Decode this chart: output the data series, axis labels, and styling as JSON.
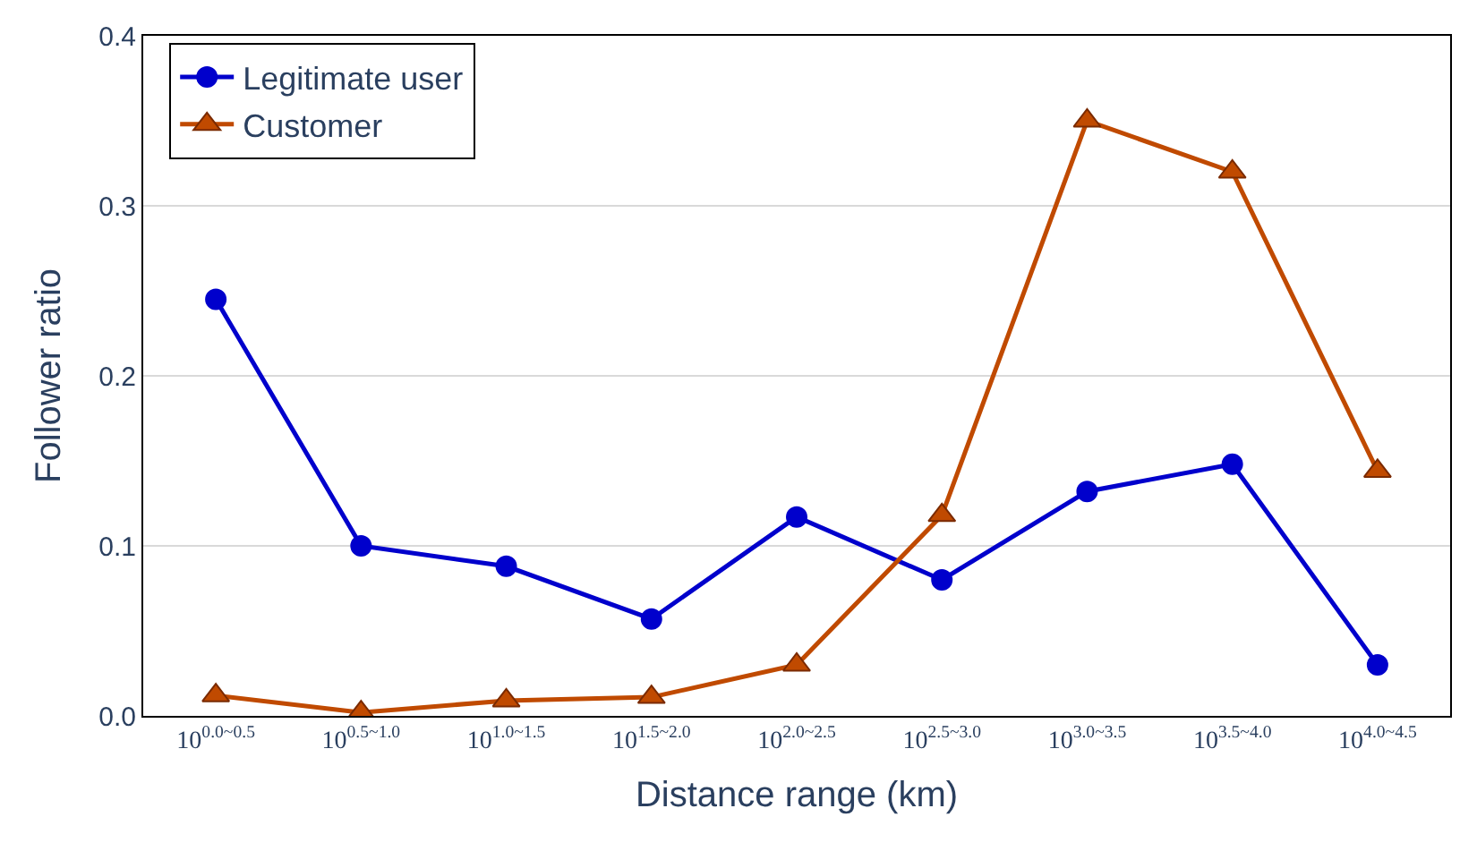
{
  "chart_data": {
    "type": "line",
    "xlabel": "Distance range (km)",
    "ylabel": "Follower ratio",
    "categories": [
      "10$^{0.0~0.5}$",
      "10$^{0.5~1.0}$",
      "10$^{1.0~1.5}$",
      "10$^{1.5~2.0}$",
      "10$^{2.0~2.5}$",
      "10$^{2.5~3.0}$",
      "10$^{3.0~3.5}$",
      "10$^{3.5~4.0}$",
      "10$^{4.0~4.5}$"
    ],
    "series": [
      {
        "name": "Legitimate user",
        "color": "#0000cc",
        "marker": "circle",
        "values": [
          0.245,
          0.1,
          0.088,
          0.057,
          0.117,
          0.08,
          0.132,
          0.148,
          0.03
        ]
      },
      {
        "name": "Customer",
        "color": "#c04a00",
        "marker": "triangle",
        "values": [
          0.012,
          0.002,
          0.009,
          0.011,
          0.03,
          0.118,
          0.35,
          0.32,
          0.144
        ]
      }
    ],
    "ylim": [
      0,
      0.4
    ],
    "yticks": [
      {
        "value": 0,
        "label": "0.0"
      },
      {
        "value": 0.1,
        "label": "0.1"
      },
      {
        "value": 0.2,
        "label": "0.2"
      },
      {
        "value": 0.3,
        "label": "0.3"
      },
      {
        "value": 0.4,
        "label": "0.4"
      }
    ],
    "grid": "y",
    "legend": "top left",
    "line_style": "solid"
  }
}
